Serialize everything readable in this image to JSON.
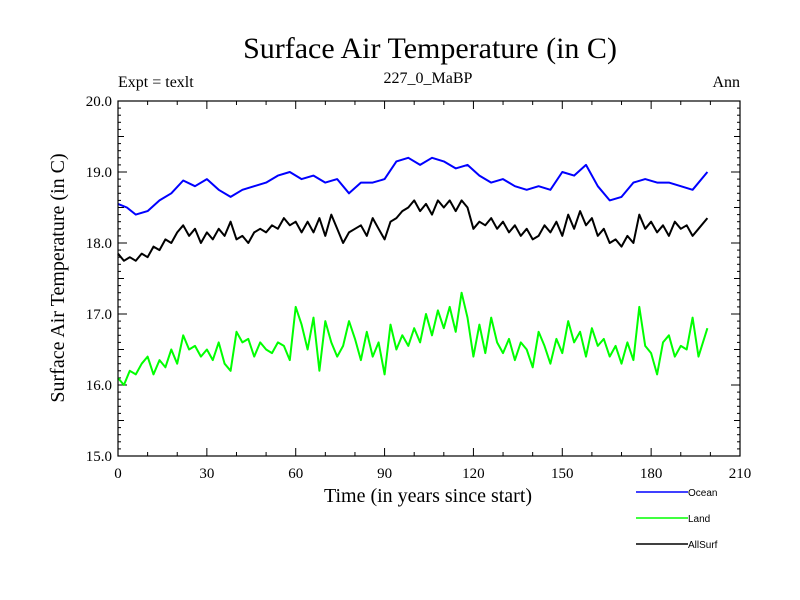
{
  "chart_data": {
    "type": "line",
    "title": "Surface Air Temperature (in C)",
    "subtitle_left": "Expt = texlt",
    "subtitle_center": "227_0_MaBP",
    "subtitle_right": "Ann",
    "xlabel": "Time (in years since start)",
    "ylabel": "Surface Air Temperature (in C)",
    "xlim": [
      0,
      210
    ],
    "ylim": [
      15.0,
      20.0
    ],
    "xticks": [
      0,
      30,
      60,
      90,
      120,
      150,
      180,
      210
    ],
    "xtick_labels": [
      "0",
      "30",
      "60",
      "90",
      "120",
      "150",
      "180",
      "210"
    ],
    "yticks": [
      15.0,
      16.0,
      17.0,
      18.0,
      19.0,
      20.0
    ],
    "ytick_labels": [
      "15.0",
      "16.0",
      "17.0",
      "18.0",
      "19.0",
      "20.0"
    ],
    "legend_position": "bottom-right, below plot",
    "series": [
      {
        "name": "Ocean",
        "color": "#0000ff",
        "x": [
          0,
          3,
          6,
          10,
          14,
          18,
          22,
          26,
          30,
          34,
          38,
          42,
          46,
          50,
          54,
          58,
          62,
          66,
          70,
          74,
          78,
          82,
          86,
          90,
          94,
          98,
          102,
          106,
          110,
          114,
          118,
          122,
          126,
          130,
          134,
          138,
          142,
          146,
          150,
          154,
          158,
          162,
          166,
          170,
          174,
          178,
          182,
          186,
          190,
          194,
          199
        ],
        "values": [
          18.55,
          18.5,
          18.4,
          18.45,
          18.6,
          18.7,
          18.88,
          18.8,
          18.9,
          18.75,
          18.65,
          18.75,
          18.8,
          18.85,
          18.95,
          19.0,
          18.9,
          18.95,
          18.85,
          18.9,
          18.7,
          18.85,
          18.85,
          18.9,
          19.15,
          19.2,
          19.1,
          19.2,
          19.15,
          19.05,
          19.1,
          18.95,
          18.85,
          18.9,
          18.8,
          18.75,
          18.8,
          18.75,
          19.0,
          18.95,
          19.1,
          18.8,
          18.6,
          18.65,
          18.85,
          18.9,
          18.85,
          18.85,
          18.8,
          18.75,
          19.0
        ]
      },
      {
        "name": "Land",
        "color": "#00ff00",
        "x": [
          0,
          2,
          4,
          6,
          8,
          10,
          12,
          14,
          16,
          18,
          20,
          22,
          24,
          26,
          28,
          30,
          32,
          34,
          36,
          38,
          40,
          42,
          44,
          46,
          48,
          50,
          52,
          54,
          56,
          58,
          60,
          62,
          64,
          66,
          68,
          70,
          72,
          74,
          76,
          78,
          80,
          82,
          84,
          86,
          88,
          90,
          92,
          94,
          96,
          98,
          100,
          102,
          104,
          106,
          108,
          110,
          112,
          114,
          116,
          118,
          120,
          122,
          124,
          126,
          128,
          130,
          132,
          134,
          136,
          138,
          140,
          142,
          144,
          146,
          148,
          150,
          152,
          154,
          156,
          158,
          160,
          162,
          164,
          166,
          168,
          170,
          172,
          174,
          176,
          178,
          180,
          182,
          184,
          186,
          188,
          190,
          192,
          194,
          196,
          199
        ],
        "values": [
          16.1,
          16.0,
          16.2,
          16.15,
          16.3,
          16.4,
          16.15,
          16.35,
          16.25,
          16.5,
          16.3,
          16.7,
          16.5,
          16.55,
          16.4,
          16.5,
          16.35,
          16.6,
          16.3,
          16.2,
          16.75,
          16.6,
          16.65,
          16.4,
          16.6,
          16.5,
          16.45,
          16.6,
          16.55,
          16.35,
          17.1,
          16.85,
          16.5,
          16.95,
          16.2,
          16.9,
          16.6,
          16.4,
          16.55,
          16.9,
          16.65,
          16.35,
          16.75,
          16.4,
          16.6,
          16.15,
          16.85,
          16.5,
          16.7,
          16.55,
          16.8,
          16.6,
          17.0,
          16.7,
          17.05,
          16.8,
          17.1,
          16.75,
          17.3,
          16.95,
          16.4,
          16.85,
          16.45,
          16.95,
          16.6,
          16.45,
          16.65,
          16.35,
          16.6,
          16.5,
          16.25,
          16.75,
          16.55,
          16.3,
          16.65,
          16.45,
          16.9,
          16.6,
          16.75,
          16.4,
          16.8,
          16.55,
          16.65,
          16.4,
          16.55,
          16.3,
          16.6,
          16.35,
          17.1,
          16.55,
          16.45,
          16.15,
          16.6,
          16.7,
          16.4,
          16.55,
          16.5,
          16.95,
          16.4,
          16.8
        ]
      },
      {
        "name": "AllSurf",
        "color": "#000000",
        "x": [
          0,
          2,
          4,
          6,
          8,
          10,
          12,
          14,
          16,
          18,
          20,
          22,
          24,
          26,
          28,
          30,
          32,
          34,
          36,
          38,
          40,
          42,
          44,
          46,
          48,
          50,
          52,
          54,
          56,
          58,
          60,
          62,
          64,
          66,
          68,
          70,
          72,
          74,
          76,
          78,
          80,
          82,
          84,
          86,
          88,
          90,
          92,
          94,
          96,
          98,
          100,
          102,
          104,
          106,
          108,
          110,
          112,
          114,
          116,
          118,
          120,
          122,
          124,
          126,
          128,
          130,
          132,
          134,
          136,
          138,
          140,
          142,
          144,
          146,
          148,
          150,
          152,
          154,
          156,
          158,
          160,
          162,
          164,
          166,
          168,
          170,
          172,
          174,
          176,
          178,
          180,
          182,
          184,
          186,
          188,
          190,
          192,
          194,
          196,
          199
        ],
        "values": [
          17.85,
          17.75,
          17.8,
          17.75,
          17.85,
          17.8,
          17.95,
          17.9,
          18.05,
          18.0,
          18.15,
          18.25,
          18.1,
          18.2,
          18.0,
          18.15,
          18.05,
          18.2,
          18.1,
          18.3,
          18.05,
          18.1,
          18.0,
          18.15,
          18.2,
          18.15,
          18.25,
          18.2,
          18.35,
          18.25,
          18.3,
          18.15,
          18.3,
          18.15,
          18.35,
          18.1,
          18.4,
          18.2,
          18.0,
          18.15,
          18.2,
          18.25,
          18.1,
          18.35,
          18.2,
          18.05,
          18.3,
          18.35,
          18.45,
          18.5,
          18.6,
          18.45,
          18.55,
          18.4,
          18.6,
          18.5,
          18.6,
          18.45,
          18.6,
          18.5,
          18.2,
          18.3,
          18.25,
          18.35,
          18.2,
          18.3,
          18.15,
          18.25,
          18.1,
          18.2,
          18.05,
          18.1,
          18.25,
          18.15,
          18.3,
          18.1,
          18.4,
          18.2,
          18.45,
          18.25,
          18.35,
          18.1,
          18.2,
          18.0,
          18.05,
          17.95,
          18.1,
          18.0,
          18.4,
          18.2,
          18.3,
          18.15,
          18.25,
          18.1,
          18.3,
          18.2,
          18.25,
          18.1,
          18.2,
          18.35
        ]
      }
    ]
  }
}
